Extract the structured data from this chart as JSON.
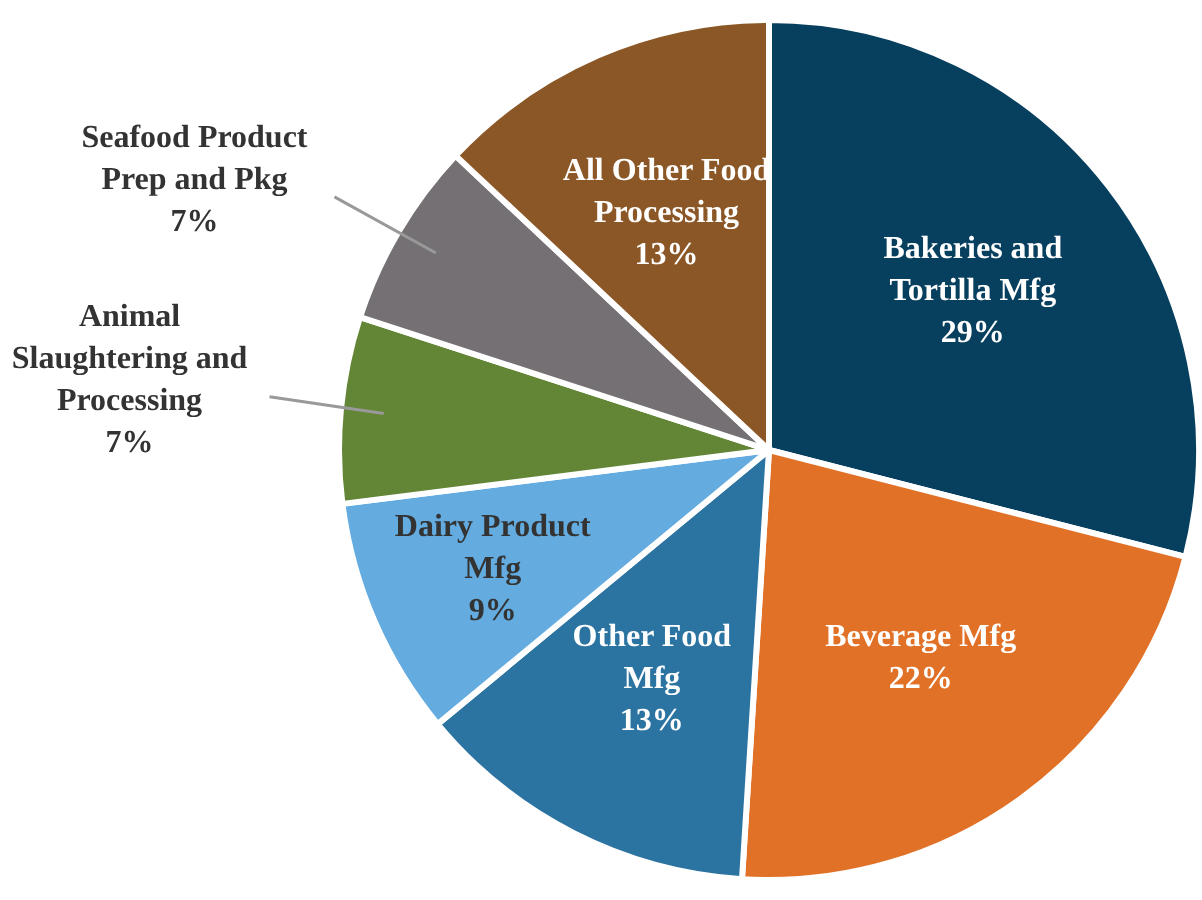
{
  "chart_data": {
    "type": "pie",
    "categories": [
      "Bakeries and Tortilla Mfg",
      "Beverage Mfg",
      "Other Food Mfg",
      "Dairy Product Mfg",
      "Animal Slaughtering and Processing",
      "Seafood Product Prep and Pkg",
      "All Other Food Processing"
    ],
    "values": [
      29,
      22,
      13,
      9,
      7,
      7,
      13
    ],
    "colors": [
      "#073f5e",
      "#e07127",
      "#2b73a0",
      "#64ace0",
      "#628536",
      "#747073",
      "#8b5726"
    ],
    "value_labels": [
      "29%",
      "22%",
      "13%",
      "9%",
      "7%",
      "7%",
      "13%"
    ],
    "legend": false
  }
}
